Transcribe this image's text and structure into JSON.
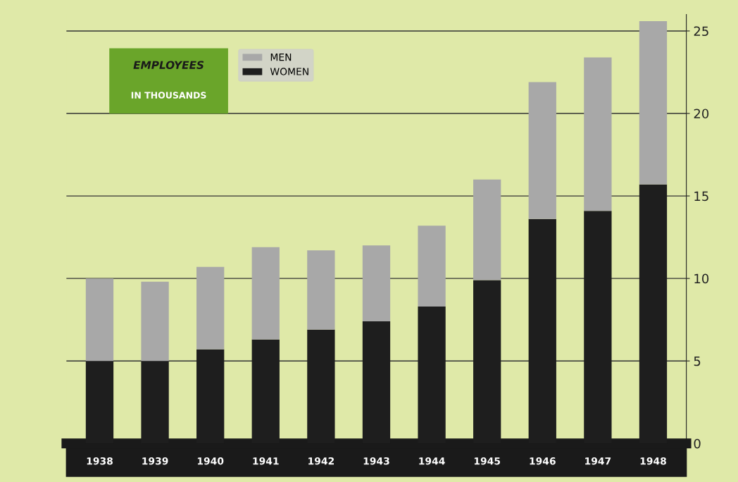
{
  "chart_data": {
    "type": "bar",
    "stacked": true,
    "title": "EMPLOYEES",
    "subtitle": "IN THOUSANDS",
    "categories": [
      "1938",
      "1939",
      "1940",
      "1941",
      "1942",
      "1943",
      "1944",
      "1945",
      "1946",
      "1947",
      "1948"
    ],
    "series": [
      {
        "name": "WOMEN",
        "color": "#1e1e1e",
        "values": [
          5.0,
          5.0,
          5.7,
          6.3,
          6.9,
          7.4,
          8.3,
          9.9,
          13.6,
          14.1,
          15.7
        ]
      },
      {
        "name": "MEN",
        "color": "#a8a8a8",
        "values": [
          5.0,
          4.8,
          5.0,
          5.6,
          4.8,
          4.6,
          4.9,
          6.1,
          8.3,
          9.3,
          9.9
        ]
      }
    ],
    "ylim": [
      0,
      26
    ],
    "yticks": [
      0,
      5,
      10,
      15,
      20,
      25
    ],
    "grid": "y",
    "legend": "top left"
  }
}
